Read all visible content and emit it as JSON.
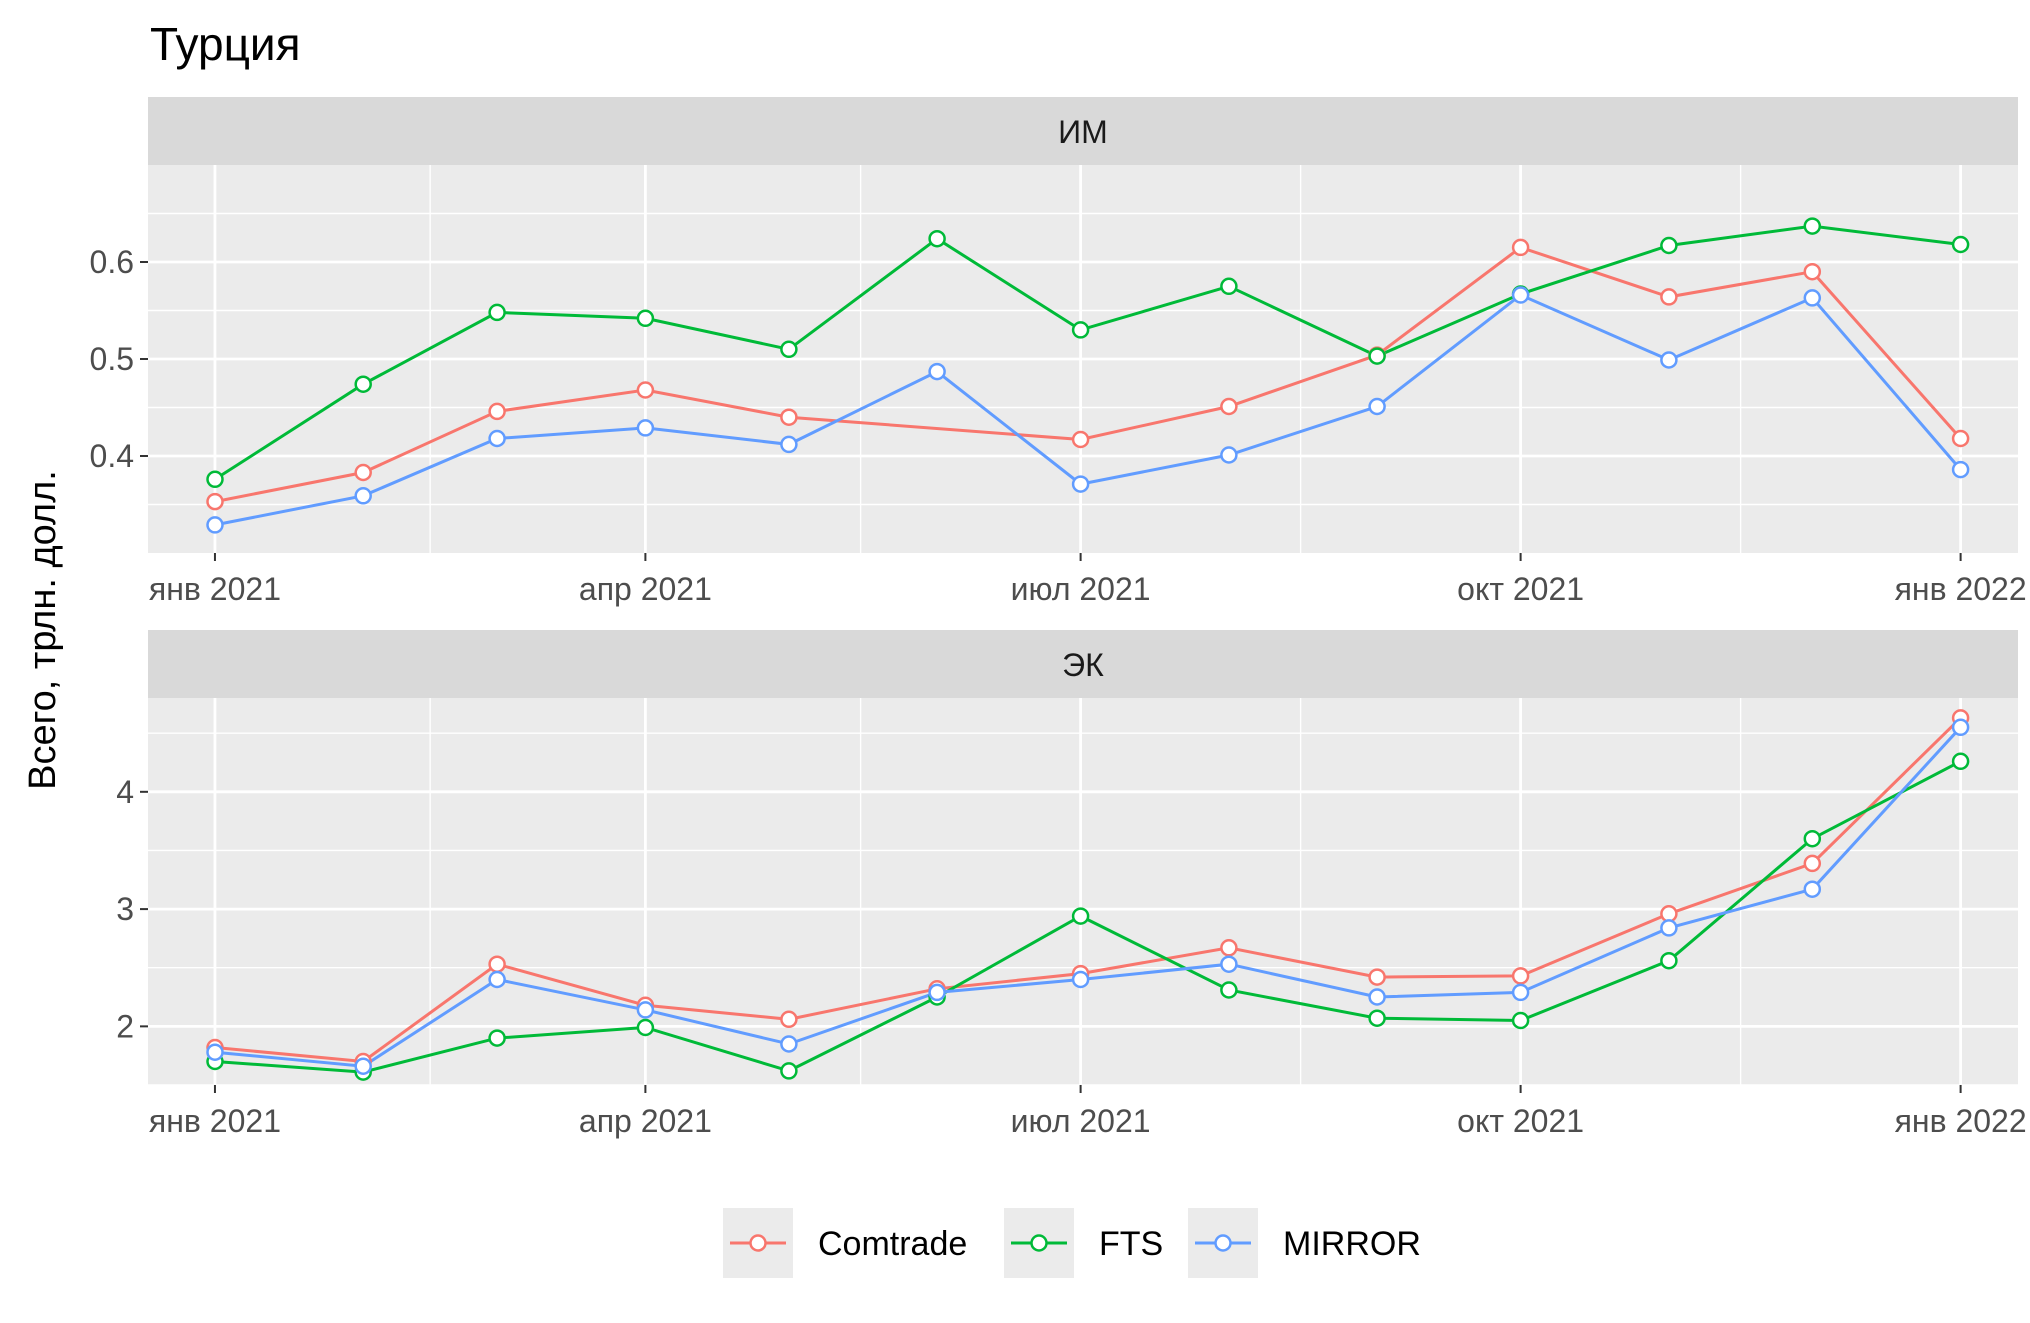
{
  "chart_data": {
    "type": "line",
    "title": "Турция",
    "ylabel": "Всего, трлн. долл.",
    "xlabel": "",
    "x": [
      "2021-01",
      "2021-02",
      "2021-03",
      "2021-04",
      "2021-05",
      "2021-06",
      "2021-07",
      "2021-08",
      "2021-09",
      "2021-10",
      "2021-11",
      "2021-12",
      "2022-01"
    ],
    "x_tick_labels": [
      "янв 2021",
      "апр 2021",
      "июл 2021",
      "окт 2021",
      "янв 2022"
    ],
    "legend_position": "bottom",
    "series_colors": {
      "Comtrade": "#F8766D",
      "FTS": "#00BA38",
      "MIRROR": "#619CFF"
    },
    "panels": [
      {
        "strip": "ИМ",
        "ylim": [
          0.3,
          0.7
        ],
        "y_ticks": [
          0.4,
          0.5,
          0.6
        ],
        "y_tick_labels": [
          "0.4",
          "0.5",
          "0.6"
        ],
        "series": [
          {
            "name": "Comtrade",
            "values": [
              0.353,
              0.383,
              0.446,
              0.468,
              0.44,
              null,
              0.417,
              0.451,
              0.504,
              0.615,
              0.564,
              0.59,
              0.418
            ]
          },
          {
            "name": "FTS",
            "values": [
              0.376,
              0.474,
              0.548,
              0.542,
              0.51,
              0.624,
              0.53,
              0.575,
              0.503,
              0.567,
              0.617,
              0.637,
              0.618
            ]
          },
          {
            "name": "MIRROR",
            "values": [
              0.329,
              0.359,
              0.418,
              0.429,
              0.412,
              0.487,
              0.371,
              0.401,
              0.451,
              0.566,
              0.499,
              0.563,
              0.386
            ]
          }
        ]
      },
      {
        "strip": "ЭК",
        "ylim": [
          1.5,
          4.8
        ],
        "y_ticks": [
          2,
          3,
          4
        ],
        "y_tick_labels": [
          "2",
          "3",
          "4"
        ],
        "series": [
          {
            "name": "Comtrade",
            "values": [
              1.82,
              1.7,
              2.53,
              2.18,
              2.06,
              2.32,
              2.45,
              2.67,
              2.42,
              2.43,
              2.96,
              3.39,
              4.63
            ]
          },
          {
            "name": "FTS",
            "values": [
              1.7,
              1.61,
              1.9,
              1.99,
              1.62,
              2.25,
              2.94,
              2.31,
              2.07,
              2.05,
              2.56,
              3.6,
              4.26
            ]
          },
          {
            "name": "MIRROR",
            "values": [
              1.78,
              1.66,
              2.4,
              2.14,
              1.85,
              2.29,
              2.4,
              2.53,
              2.25,
              2.29,
              2.84,
              3.17,
              4.55
            ]
          }
        ]
      }
    ]
  }
}
